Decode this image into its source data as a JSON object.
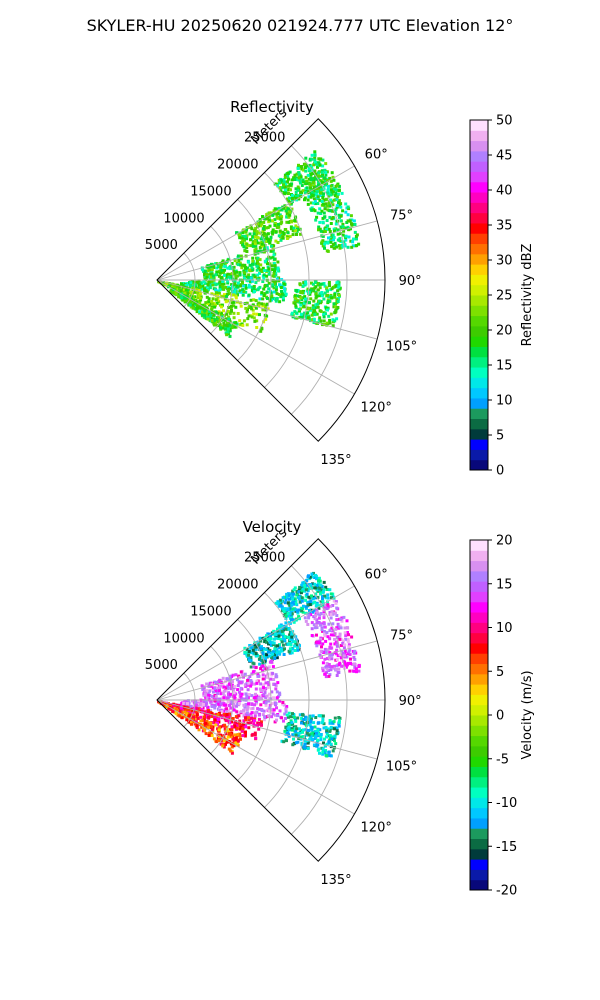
{
  "figure": {
    "title": "SKYLER-HU  20250620  021924.777 UTC Elevation 12°"
  },
  "chart_data": [
    {
      "type": "heatmap",
      "title": "Reflectivity",
      "radial_label": "Meters",
      "radial_ticks": [
        "5000",
        "10000",
        "15000",
        "20000",
        "25000"
      ],
      "radial_range": [
        0,
        30000
      ],
      "angle_ticks": [
        "60°",
        "75°",
        "90°",
        "105°",
        "120°",
        "135°"
      ],
      "angle_range_deg": [
        45,
        135
      ],
      "grid": true,
      "colorbar": {
        "label": "Reflectivity dBZ",
        "range": [
          0,
          50
        ],
        "ticks": [
          "0",
          "5",
          "10",
          "15",
          "20",
          "25",
          "30",
          "35",
          "40",
          "45",
          "50"
        ],
        "colors": [
          "#08087a",
          "#0a1aa8",
          "#0000ff",
          "#003b3b",
          "#0b6b43",
          "#1c9a5e",
          "#00a0ff",
          "#00c8ff",
          "#00e8e8",
          "#00ffc0",
          "#00f080",
          "#00e040",
          "#20d800",
          "#3dcc00",
          "#55d800",
          "#7ee000",
          "#a8e800",
          "#d0f000",
          "#f0f000",
          "#ffd000",
          "#ffa000",
          "#ff7000",
          "#ff4000",
          "#ff0000",
          "#ff0040",
          "#ff0080",
          "#ff00c0",
          "#ff00ff",
          "#e040ff",
          "#c060ff",
          "#b080ff",
          "#d890f0",
          "#f0b0f0",
          "#ffe0ff"
        ]
      },
      "echo_regions": [
        {
          "angle_deg": [
            50,
            60
          ],
          "range_m": [
            20000,
            27000
          ],
          "dbz": 18
        },
        {
          "angle_deg": [
            58,
            72
          ],
          "range_m": [
            12000,
            20000
          ],
          "dbz": 20
        },
        {
          "angle_deg": [
            72,
            88
          ],
          "range_m": [
            6000,
            16000
          ],
          "dbz": 18
        },
        {
          "angle_deg": [
            88,
            100
          ],
          "range_m": [
            3000,
            17000
          ],
          "dbz": 17
        },
        {
          "angle_deg": [
            100,
            118
          ],
          "range_m": [
            0,
            15000
          ],
          "dbz": 22
        },
        {
          "angle_deg": [
            118,
            128
          ],
          "range_m": [
            2000,
            12000
          ],
          "dbz": 19
        },
        {
          "angle_deg": [
            60,
            80
          ],
          "range_m": [
            22000,
            27000
          ],
          "dbz": 17
        },
        {
          "angle_deg": [
            90,
            105
          ],
          "range_m": [
            18000,
            24000
          ],
          "dbz": 18
        }
      ]
    },
    {
      "type": "heatmap",
      "title": "Velocity",
      "radial_label": "Meters",
      "radial_ticks": [
        "5000",
        "10000",
        "15000",
        "20000",
        "25000"
      ],
      "radial_range": [
        0,
        30000
      ],
      "angle_ticks": [
        "60°",
        "75°",
        "90°",
        "105°",
        "120°",
        "135°"
      ],
      "angle_range_deg": [
        45,
        135
      ],
      "grid": true,
      "colorbar": {
        "label": "Velocity (m/s)",
        "range": [
          -20,
          20
        ],
        "ticks": [
          "-20",
          "-15",
          "-10",
          "-5",
          "0",
          "5",
          "10",
          "15",
          "20"
        ],
        "colors": [
          "#08087a",
          "#0a1aa8",
          "#0000ff",
          "#003b3b",
          "#0b6b43",
          "#1c9a5e",
          "#00a0ff",
          "#00c8ff",
          "#00e8e8",
          "#00ffc0",
          "#00f080",
          "#00e040",
          "#20d800",
          "#3dcc00",
          "#55d800",
          "#7ee000",
          "#a8e800",
          "#d0f000",
          "#f0f000",
          "#ffd000",
          "#ffa000",
          "#ff7000",
          "#ff4000",
          "#ff0000",
          "#ff0040",
          "#ff0080",
          "#ff00c0",
          "#ff00ff",
          "#e040ff",
          "#c060ff",
          "#b080ff",
          "#d890f0",
          "#f0b0f0",
          "#ffe0ff"
        ]
      },
      "echo_regions": [
        {
          "angle_deg": [
            50,
            60
          ],
          "range_m": [
            20000,
            27000
          ],
          "ms": -11
        },
        {
          "angle_deg": [
            58,
            70
          ],
          "range_m": [
            13000,
            20000
          ],
          "ms": -12
        },
        {
          "angle_deg": [
            70,
            88
          ],
          "range_m": [
            6000,
            16000
          ],
          "ms": 15
        },
        {
          "angle_deg": [
            88,
            100
          ],
          "range_m": [
            3000,
            17000
          ],
          "ms": 15
        },
        {
          "angle_deg": [
            100,
            112
          ],
          "range_m": [
            0,
            14000
          ],
          "ms": 9
        },
        {
          "angle_deg": [
            112,
            125
          ],
          "range_m": [
            0,
            12000
          ],
          "ms": 6
        },
        {
          "angle_deg": [
            60,
            82
          ],
          "range_m": [
            22000,
            27000
          ],
          "ms": 15
        },
        {
          "angle_deg": [
            95,
            108
          ],
          "range_m": [
            17000,
            24000
          ],
          "ms": -11
        }
      ]
    }
  ]
}
